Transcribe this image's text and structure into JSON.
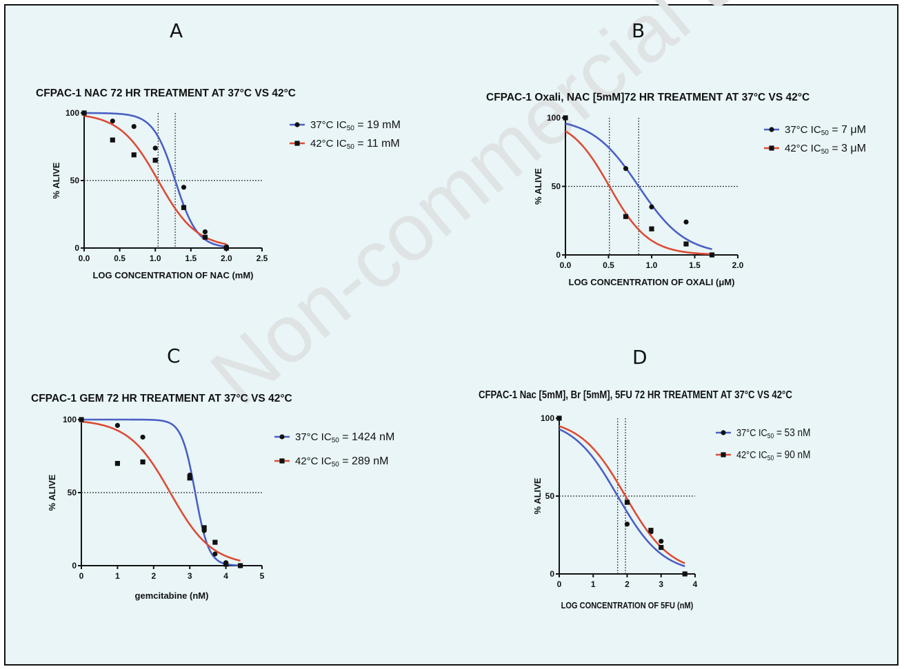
{
  "watermark": "Non-commercial use",
  "panels": [
    "A",
    "B",
    "C",
    "D"
  ],
  "colors": {
    "blue": "#4a5fc4",
    "red": "#dd4b34",
    "marker": "#111111"
  },
  "chart_data": [
    {
      "id": "A",
      "type": "scatter",
      "title": "CFPAC-1 NAC 72 HR TREATMENT AT 37°C  VS 42°C",
      "xlabel": "LOG CONCENTRATION OF NAC (mM)",
      "ylabel": "% ALIVE",
      "xlim": [
        0,
        2.5
      ],
      "ylim": [
        0,
        100
      ],
      "xticks": [
        0,
        0.5,
        1.0,
        1.5,
        2.0,
        2.5
      ],
      "xtick_labels": [
        "0.0",
        "0.5",
        "1.0",
        "1.5",
        "2.0",
        "2.5"
      ],
      "yticks": [
        0,
        50,
        100
      ],
      "ytick_labels": [
        "0",
        "50",
        "100"
      ],
      "ref_lines": {
        "y": [
          50
        ],
        "x": [
          1.04,
          1.28
        ]
      },
      "series": [
        {
          "name": "37°C IC50 = 19 mM",
          "label_text": "37°C IC",
          "label_sub": "50",
          "label_rest": "= 19 mM",
          "marker": "circle",
          "color": "blue",
          "x": [
            0,
            0.4,
            0.7,
            1.0,
            1.4,
            1.7,
            2.0
          ],
          "y": [
            100,
            94,
            90,
            74,
            45,
            12,
            1
          ],
          "fit": {
            "top": 100,
            "bottom": 0,
            "logic50": 1.28,
            "hill": 2.8,
            "xmin": 0,
            "xmax": 2.0
          }
        },
        {
          "name": "42°C IC50 = 11 mM",
          "label_text": "42°C IC",
          "label_sub": "50",
          "label_rest": "= 11 mM",
          "marker": "square",
          "color": "red",
          "x": [
            0,
            0.4,
            0.7,
            1.0,
            1.4,
            1.7,
            2.0
          ],
          "y": [
            100,
            80,
            69,
            65,
            30,
            8,
            0
          ],
          "fit": {
            "top": 100,
            "bottom": 0,
            "logic50": 1.04,
            "hill": 1.6,
            "xmin": 0,
            "xmax": 2.0
          }
        }
      ]
    },
    {
      "id": "B",
      "type": "scatter",
      "title": "CFPAC-1 Oxali, NAC [5mM]72 HR TREATMENT AT 37°C  VS 42°C",
      "xlabel": "LOG CONCENTRATION OF OXALI (μM)",
      "ylabel": "% ALIVE",
      "xlim": [
        0,
        2.0
      ],
      "ylim": [
        0,
        100
      ],
      "xticks": [
        0,
        0.5,
        1.0,
        1.5,
        2.0
      ],
      "xtick_labels": [
        "0.0",
        "0.5",
        "1.0",
        "1.5",
        "2.0"
      ],
      "yticks": [
        0,
        50,
        100
      ],
      "ytick_labels": [
        "0",
        "50",
        "100"
      ],
      "ref_lines": {
        "y": [
          50
        ],
        "x": [
          0.51,
          0.85
        ]
      },
      "series": [
        {
          "name": "37°C IC50 = 7 μM",
          "label_text": "37°C IC",
          "label_sub": "50",
          "label_rest": "= 7 μM",
          "marker": "circle",
          "color": "blue",
          "x": [
            0,
            0.7,
            1.0,
            1.4,
            1.7
          ],
          "y": [
            100,
            63,
            35,
            24,
            0
          ],
          "fit": {
            "top": 100,
            "bottom": 0,
            "logic50": 0.85,
            "hill": 1.6,
            "xmin": 0,
            "xmax": 1.7
          }
        },
        {
          "name": "42°C IC50 = 3 μM",
          "label_text": "42°C IC",
          "label_sub": "50",
          "label_rest": "= 3 μM",
          "marker": "square",
          "color": "red",
          "x": [
            0,
            0.7,
            1.0,
            1.4,
            1.7
          ],
          "y": [
            100,
            28,
            19,
            8,
            0
          ],
          "fit": {
            "top": 100,
            "bottom": 0,
            "logic50": 0.51,
            "hill": 1.9,
            "xmin": 0,
            "xmax": 1.7
          }
        }
      ]
    },
    {
      "id": "C",
      "type": "scatter",
      "title": "CFPAC-1 GEM 72 HR TREATMENT AT 37°C  VS 42°C",
      "xlabel": "gemcitabine (nM)",
      "ylabel": "% ALIVE",
      "xlim": [
        0,
        5
      ],
      "ylim": [
        0,
        100
      ],
      "xticks": [
        0,
        1,
        2,
        3,
        4,
        5
      ],
      "xtick_labels": [
        "0",
        "1",
        "2",
        "3",
        "4",
        "5"
      ],
      "yticks": [
        0,
        50,
        100
      ],
      "ytick_labels": [
        "0",
        "50",
        "100"
      ],
      "ref_lines": {
        "y": [
          50
        ],
        "x": []
      },
      "series": [
        {
          "name": "37°C IC50 = 1424 nM",
          "label_text": "37°C IC",
          "label_sub": "50",
          "label_rest": "= 1424 nM",
          "marker": "circle",
          "color": "blue",
          "x": [
            0,
            1,
            1.7,
            3,
            3.4,
            3.7,
            4,
            4.4
          ],
          "y": [
            100,
            96,
            88,
            62,
            24,
            8,
            2,
            0
          ],
          "fit": {
            "top": 100,
            "bottom": 0,
            "logic50": 3.15,
            "hill": 2.3,
            "xmin": 0,
            "xmax": 4.4
          }
        },
        {
          "name": "42°C IC50 = 289 nM",
          "label_text": "42°C IC",
          "label_sub": "50",
          "label_rest": "= 289 nM",
          "marker": "square",
          "color": "red",
          "x": [
            0,
            1,
            1.7,
            3,
            3.4,
            3.7,
            4,
            4.4
          ],
          "y": [
            100,
            70,
            71,
            60,
            26,
            16,
            1,
            0
          ],
          "fit": {
            "top": 100,
            "bottom": 0,
            "logic50": 2.46,
            "hill": 0.75,
            "xmin": 0,
            "xmax": 4.4
          }
        }
      ]
    },
    {
      "id": "D",
      "type": "scatter",
      "title": "CFPAC-1 Nac [5mM], Br [5mM], 5FU 72 HR TREATMENT AT 37°C  VS 42°C",
      "xlabel": "LOG CONCENTRATION OF 5FU (nM)",
      "ylabel": "% ALIVE",
      "xlim": [
        0,
        4
      ],
      "ylim": [
        0,
        100
      ],
      "xticks": [
        0,
        1,
        2,
        3,
        4
      ],
      "xtick_labels": [
        "0",
        "1",
        "2",
        "3",
        "4"
      ],
      "yticks": [
        0,
        50,
        100
      ],
      "ytick_labels": [
        "0",
        "50",
        "100"
      ],
      "ref_lines": {
        "y": [
          50
        ],
        "x": [
          1.72,
          1.95
        ]
      },
      "series": [
        {
          "name": "37°C IC50 = 53 nM",
          "label_text": "37°C IC",
          "label_sub": "50",
          "label_rest": "= 53 nM",
          "marker": "circle",
          "color": "blue",
          "x": [
            0,
            2,
            2.7,
            3,
            3.7
          ],
          "y": [
            100,
            32,
            27,
            21,
            0
          ],
          "fit": {
            "top": 100,
            "bottom": 0,
            "logic50": 1.72,
            "hill": 0.65,
            "xmin": 0,
            "xmax": 3.7
          }
        },
        {
          "name": "42°C IC50 = 90 nM",
          "label_text": "42°C IC",
          "label_sub": "50",
          "label_rest": "= 90 nM",
          "marker": "square",
          "color": "red",
          "x": [
            0,
            2,
            2.7,
            3,
            3.7
          ],
          "y": [
            100,
            46,
            28,
            17,
            0
          ],
          "fit": {
            "top": 100,
            "bottom": 0,
            "logic50": 1.95,
            "hill": 0.65,
            "xmin": 0,
            "xmax": 3.7
          }
        }
      ]
    }
  ]
}
